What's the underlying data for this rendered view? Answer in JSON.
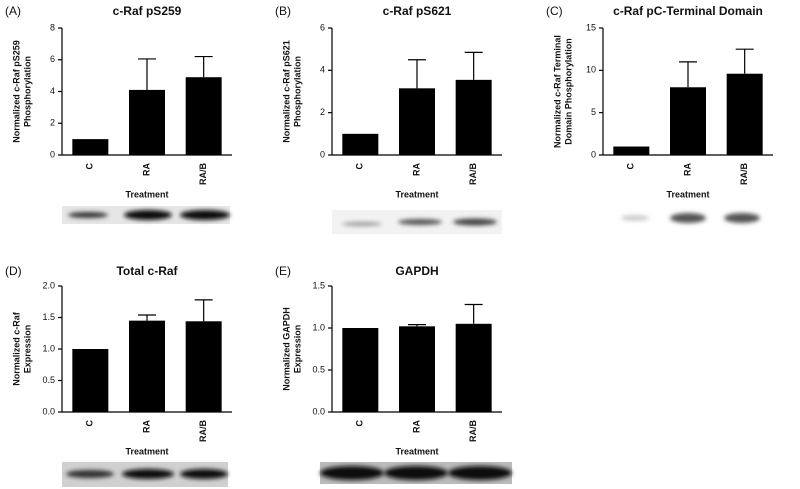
{
  "chart_data": [
    {
      "type": "bar",
      "panel": "(A)",
      "title": "c-Raf pS259",
      "ylabel": [
        "Normalized c-Raf pS259",
        "Phosphorylation"
      ],
      "xlabel": "Treatment",
      "categories": [
        "C",
        "RA",
        "RA/B"
      ],
      "values": [
        1,
        4.1,
        4.9
      ],
      "errors": [
        null,
        1.95,
        1.3
      ],
      "color": "#000000",
      "ylim": [
        0,
        8
      ],
      "yticks": [
        0,
        2,
        4,
        6,
        8
      ]
    },
    {
      "type": "bar",
      "panel": "(B)",
      "title": "c-Raf pS621",
      "ylabel": [
        "Normalized c-Raf pS621",
        "Phosphorylation"
      ],
      "xlabel": "Treatment",
      "categories": [
        "C",
        "RA",
        "RA/B"
      ],
      "values": [
        1,
        3.15,
        3.55
      ],
      "errors": [
        null,
        1.35,
        1.3
      ],
      "color": "#000000",
      "ylim": [
        0,
        6
      ],
      "yticks": [
        0,
        2,
        4,
        6
      ]
    },
    {
      "type": "bar",
      "panel": "(C)",
      "title": "c-Raf pC-Terminal Domain",
      "ylabel": [
        "Normalized c-Raf Terminal",
        "Domain Phosphorylation"
      ],
      "xlabel": "Treatment",
      "categories": [
        "C",
        "RA",
        "RA/B"
      ],
      "values": [
        1,
        8,
        9.6
      ],
      "errors": [
        null,
        3,
        2.9
      ],
      "color": "#000000",
      "ylim": [
        0,
        15
      ],
      "yticks": [
        0,
        5,
        10,
        15
      ]
    },
    {
      "type": "bar",
      "panel": "(D)",
      "title": "Total c-Raf",
      "ylabel": [
        "Normalized c-Raf",
        "Expression"
      ],
      "xlabel": "Treatment",
      "categories": [
        "C",
        "RA",
        "RA/B"
      ],
      "values": [
        1.0,
        1.45,
        1.44
      ],
      "errors": [
        null,
        0.09,
        0.34
      ],
      "color": "#000000",
      "ylim": [
        0,
        2.0
      ],
      "yticks": [
        {
          "value": 0,
          "label": "0.0"
        },
        {
          "value": 0.5,
          "label": "0.5"
        },
        {
          "value": 1,
          "label": "1.0"
        },
        {
          "value": 1.5,
          "label": "1.5"
        },
        {
          "value": 2,
          "label": "2.0"
        }
      ]
    },
    {
      "type": "bar",
      "panel": "(E)",
      "title": "GAPDH",
      "ylabel": [
        "Normalized GAPDH",
        "Expression"
      ],
      "xlabel": "Treatment",
      "categories": [
        "C",
        "RA",
        "RA/B"
      ],
      "values": [
        1.0,
        1.02,
        1.05
      ],
      "errors": [
        null,
        0.02,
        0.23
      ],
      "color": "#000000",
      "ylim": [
        0,
        1.5
      ],
      "yticks": [
        {
          "value": 0,
          "label": "0.0"
        },
        {
          "value": 0.5,
          "label": "0.5"
        },
        {
          "value": 1,
          "label": "1.0"
        },
        {
          "value": 1.5,
          "label": "1.5"
        }
      ]
    }
  ]
}
